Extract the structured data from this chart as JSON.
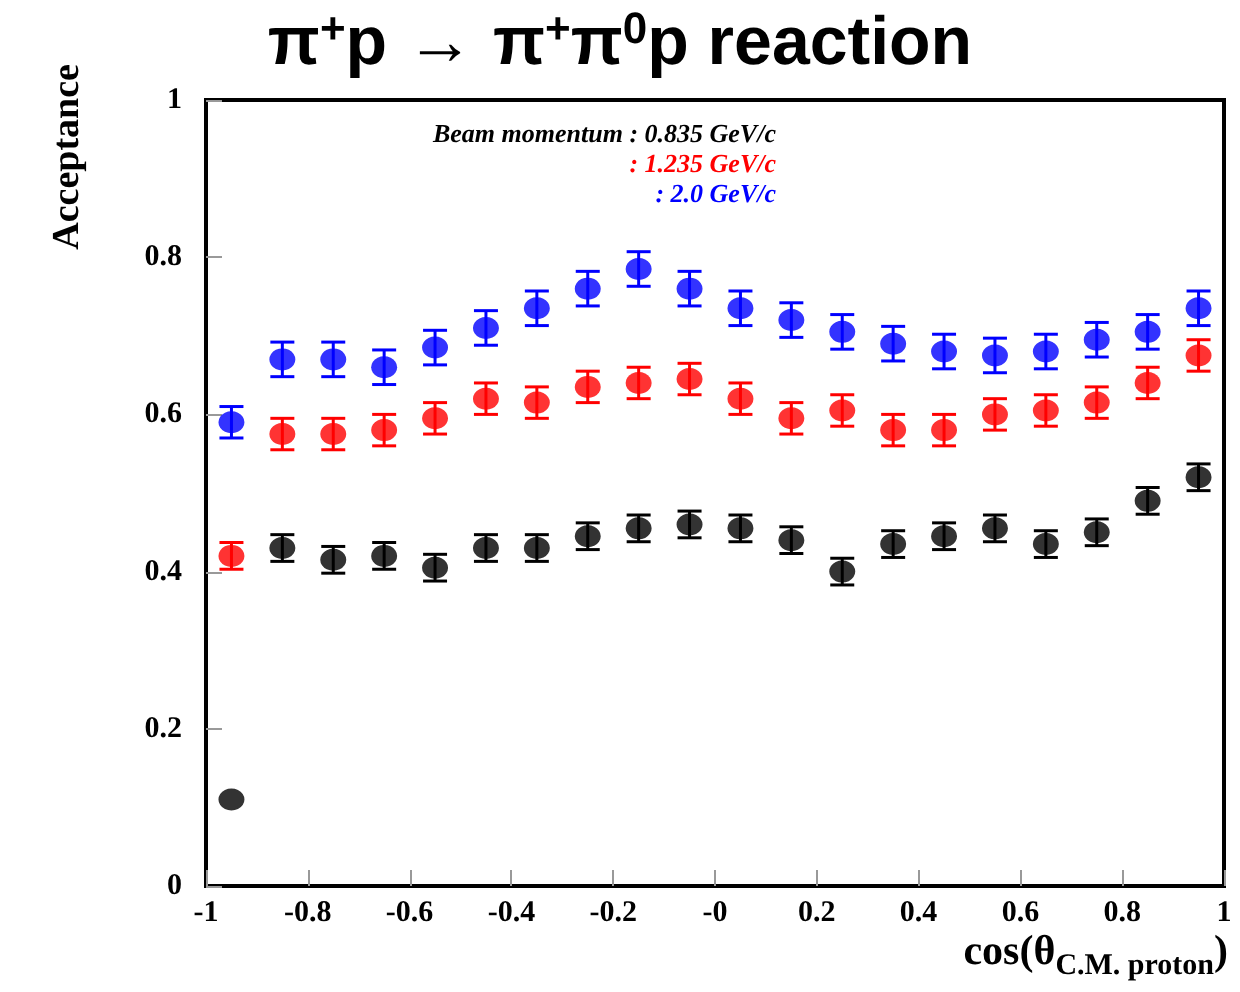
{
  "chart_data": {
    "type": "scatter",
    "title": "π$^{+}$p → π$^{+}$π$^{0}$p reaction",
    "xlabel": "cos(θ$_{C.M. proton}$)",
    "ylabel": "Acceptance",
    "x": [
      -0.95,
      -0.85,
      -0.75,
      -0.65,
      -0.55,
      -0.45,
      -0.35,
      -0.25,
      -0.15,
      -0.05,
      0.05,
      0.15,
      0.25,
      0.35,
      0.45,
      0.55,
      0.65,
      0.75,
      0.85,
      0.95
    ],
    "series": [
      {
        "name": "Beam momentum : 0.835 GeV/c",
        "color": "#000000",
        "values": [
          0.11,
          0.43,
          0.415,
          0.42,
          0.405,
          0.43,
          0.43,
          0.445,
          0.455,
          0.46,
          0.455,
          0.44,
          0.4,
          0.435,
          0.445,
          0.455,
          0.435,
          0.45,
          0.49,
          0.52
        ],
        "errors": [
          null,
          0.017,
          0.017,
          0.017,
          0.017,
          0.017,
          0.017,
          0.017,
          0.017,
          0.017,
          0.017,
          0.017,
          0.017,
          0.017,
          0.017,
          0.017,
          0.017,
          0.017,
          0.017,
          0.017
        ]
      },
      {
        "name": ": 1.235 GeV/c",
        "color": "#ff0000",
        "values": [
          0.42,
          0.575,
          0.575,
          0.58,
          0.595,
          0.62,
          0.615,
          0.635,
          0.64,
          0.645,
          0.62,
          0.595,
          0.605,
          0.58,
          0.58,
          0.6,
          0.605,
          0.615,
          0.64,
          0.675
        ],
        "errors": [
          0.017,
          0.02,
          0.02,
          0.02,
          0.02,
          0.02,
          0.02,
          0.02,
          0.02,
          0.02,
          0.02,
          0.02,
          0.02,
          0.02,
          0.02,
          0.02,
          0.02,
          0.02,
          0.02,
          0.02
        ]
      },
      {
        "name": ": 2.0 GeV/c",
        "color": "#0000ff",
        "values": [
          0.59,
          0.67,
          0.67,
          0.66,
          0.685,
          0.71,
          0.735,
          0.76,
          0.785,
          0.76,
          0.735,
          0.72,
          0.705,
          0.69,
          0.68,
          0.675,
          0.68,
          0.695,
          0.705,
          0.735
        ],
        "errors": [
          0.02,
          0.022,
          0.022,
          0.022,
          0.022,
          0.022,
          0.022,
          0.022,
          0.022,
          0.022,
          0.022,
          0.022,
          0.022,
          0.022,
          0.022,
          0.022,
          0.022,
          0.022,
          0.022,
          0.022
        ]
      }
    ],
    "xlim": [
      -1,
      1
    ],
    "xticks": [
      -1,
      -0.8,
      -0.6,
      -0.4,
      -0.2,
      {
        "value": 0,
        "label": "-0"
      },
      0.2,
      0.4,
      0.6,
      0.8,
      1
    ],
    "ylim": [
      0,
      1
    ],
    "yticks": [
      0,
      0.2,
      0.4,
      0.6,
      0.8,
      1
    ],
    "marker": "circle",
    "grid": false,
    "legend": "top left"
  }
}
